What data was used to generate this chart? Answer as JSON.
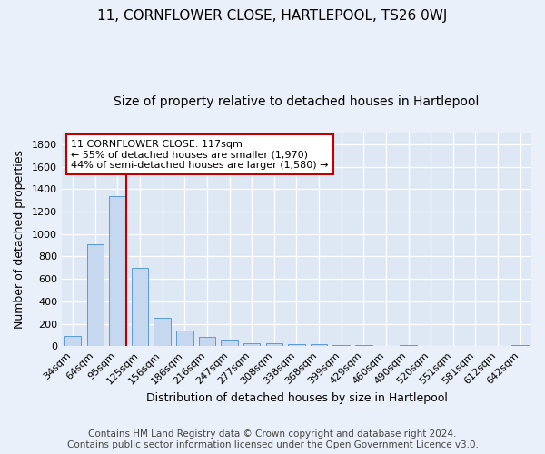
{
  "title": "11, CORNFLOWER CLOSE, HARTLEPOOL, TS26 0WJ",
  "subtitle": "Size of property relative to detached houses in Hartlepool",
  "xlabel": "Distribution of detached houses by size in Hartlepool",
  "ylabel": "Number of detached properties",
  "categories": [
    "34sqm",
    "64sqm",
    "95sqm",
    "125sqm",
    "156sqm",
    "186sqm",
    "216sqm",
    "247sqm",
    "277sqm",
    "308sqm",
    "338sqm",
    "368sqm",
    "399sqm",
    "429sqm",
    "460sqm",
    "490sqm",
    "520sqm",
    "551sqm",
    "581sqm",
    "612sqm",
    "642sqm"
  ],
  "values": [
    90,
    910,
    1340,
    700,
    250,
    140,
    80,
    55,
    30,
    25,
    20,
    15,
    10,
    10,
    0,
    10,
    0,
    0,
    0,
    0,
    10
  ],
  "bar_color": "#c5d8f0",
  "bar_edge_color": "#5b9bd5",
  "background_color": "#eaf0f9",
  "plot_bg_color": "#dde8f4",
  "grid_color": "#ffffff",
  "vline_color": "#c00000",
  "vline_x_idx": 2,
  "annotation_title": "11 CORNFLOWER CLOSE: 117sqm",
  "annotation_line1": "← 55% of detached houses are smaller (1,970)",
  "annotation_line2": "44% of semi-detached houses are larger (1,580) →",
  "annotation_box_edge": "#c00000",
  "annotation_box_face": "#ffffff",
  "ylim": [
    0,
    1900
  ],
  "yticks": [
    0,
    200,
    400,
    600,
    800,
    1000,
    1200,
    1400,
    1600,
    1800
  ],
  "footer_line1": "Contains HM Land Registry data © Crown copyright and database right 2024.",
  "footer_line2": "Contains public sector information licensed under the Open Government Licence v3.0.",
  "title_fontsize": 11,
  "subtitle_fontsize": 10,
  "xlabel_fontsize": 9,
  "ylabel_fontsize": 9,
  "tick_fontsize": 8,
  "footer_fontsize": 7.5
}
